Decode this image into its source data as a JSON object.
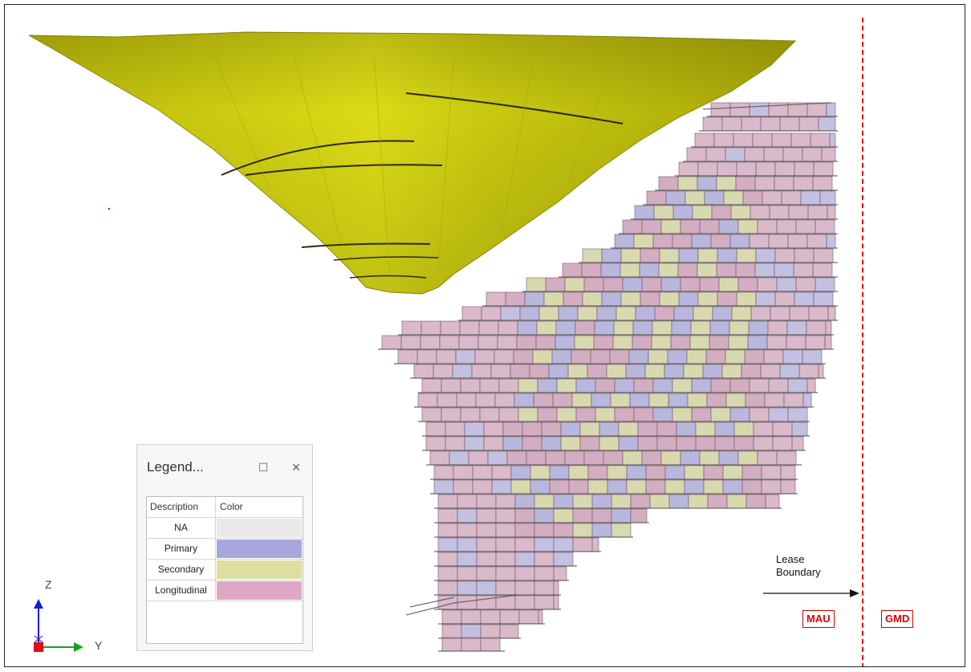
{
  "legend": {
    "title": "Legend...",
    "header": {
      "description": "Description",
      "color": "Color"
    },
    "rows": [
      {
        "label": "NA",
        "color": "#e9e9e9"
      },
      {
        "label": "Primary",
        "color": "#a7a7e0"
      },
      {
        "label": "Secondary",
        "color": "#dede9f"
      },
      {
        "label": "Longitudinal",
        "color": "#e0a6c6"
      }
    ]
  },
  "annotations": {
    "lease_boundary_line1": "Lease",
    "lease_boundary_line2": "Boundary",
    "zone_left": "MAU",
    "zone_right": "GMD"
  },
  "axes": {
    "vertical": "Z",
    "horizontal": "Y"
  },
  "colors": {
    "pit": "#d7d60f",
    "boundary": "#e00000",
    "stope_longitudinal": "#c08aa6",
    "stope_primary": "#9a98cf",
    "stope_secondary": "#c9c98e"
  }
}
